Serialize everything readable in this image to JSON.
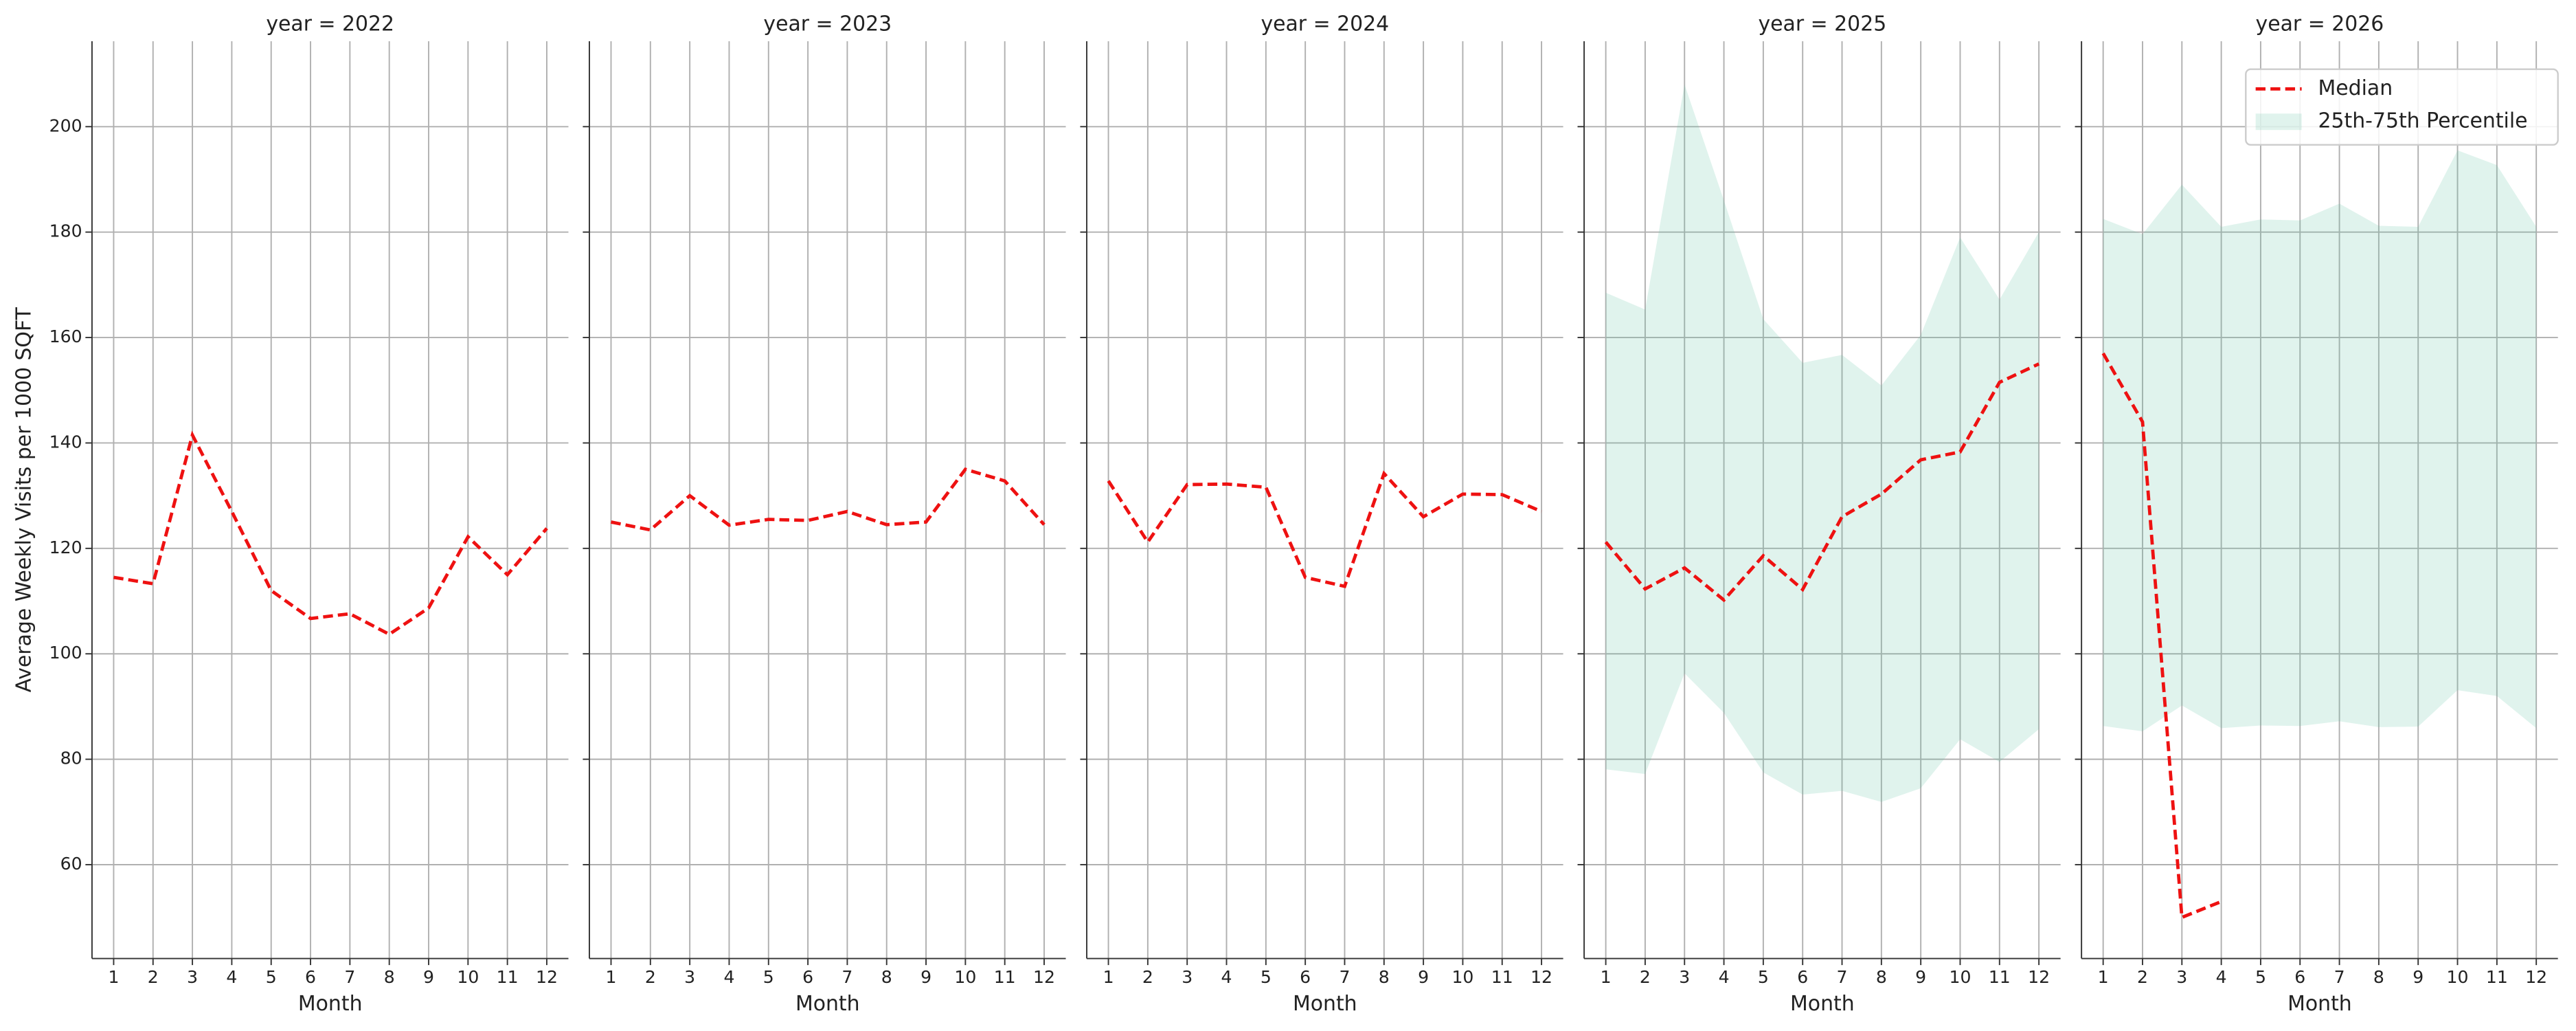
{
  "chart_data": [
    {
      "type": "line",
      "title": "year = 2022",
      "xlabel": "Month",
      "ylabel": "Average Weekly Visits per 1000 SQFT",
      "x": [
        1,
        2,
        3,
        4,
        5,
        6,
        7,
        8,
        9,
        10,
        11,
        12
      ],
      "series": [
        {
          "color": "#ee1111",
          "values": [
            114.5,
            113.3,
            141.5,
            127,
            112,
            106.7,
            107.6,
            103.7,
            108.7,
            122.2,
            115,
            123.8
          ]
        }
      ],
      "xlim": [
        0.45,
        12.55
      ],
      "xticks": [
        1,
        2,
        3,
        4,
        5,
        6,
        7,
        8,
        9,
        10,
        11,
        12
      ],
      "ylim": [
        42.2,
        216.2
      ],
      "yticks": [
        60,
        80,
        100,
        120,
        140,
        160,
        180,
        200
      ],
      "grid": true
    },
    {
      "type": "line",
      "title": "year = 2023",
      "xlabel": "Month",
      "x": [
        1,
        2,
        3,
        4,
        5,
        6,
        7,
        8,
        9,
        10,
        11,
        12
      ],
      "series": [
        {
          "color": "#ee1111",
          "values": [
            125,
            123.5,
            130,
            124.4,
            125.5,
            125.3,
            127,
            124.5,
            125,
            135,
            132.8,
            124.5
          ]
        }
      ],
      "xlim": [
        0.45,
        12.55
      ],
      "xticks": [
        1,
        2,
        3,
        4,
        5,
        6,
        7,
        8,
        9,
        10,
        11,
        12
      ],
      "ylim": [
        42.2,
        216.2
      ],
      "yticks": [
        60,
        80,
        100,
        120,
        140,
        160,
        180,
        200
      ],
      "grid": true
    },
    {
      "type": "line",
      "title": "year = 2024",
      "xlabel": "Month",
      "x": [
        1,
        2,
        3,
        4,
        5,
        6,
        7,
        8,
        9,
        10,
        11,
        12
      ],
      "series": [
        {
          "color": "#ee1111",
          "values": [
            132.8,
            121.2,
            132.1,
            132.2,
            131.6,
            114.5,
            112.8,
            134.2,
            126,
            130.3,
            130.2,
            127
          ]
        }
      ],
      "xlim": [
        0.45,
        12.55
      ],
      "xticks": [
        1,
        2,
        3,
        4,
        5,
        6,
        7,
        8,
        9,
        10,
        11,
        12
      ],
      "ylim": [
        42.2,
        216.2
      ],
      "yticks": [
        60,
        80,
        100,
        120,
        140,
        160,
        180,
        200
      ],
      "grid": true
    },
    {
      "type": "line",
      "title": "year = 2025",
      "xlabel": "Month",
      "x": [
        1,
        2,
        3,
        4,
        5,
        6,
        7,
        8,
        9,
        10,
        11,
        12
      ],
      "series": [
        {
          "color": "#ee1111",
          "values": [
            121.2,
            112.3,
            116.3,
            110.2,
            118.6,
            112.2,
            126,
            130.3,
            136.8,
            138.3,
            151.5,
            155
          ]
        },
        {
          "color": "#66c2a5",
          "low": [
            78.1,
            77.2,
            96.3,
            88.8,
            77.5,
            73.3,
            74,
            71.9,
            74.5,
            83.8,
            79.5,
            85.7
          ],
          "high": [
            168.5,
            165.3,
            208,
            186,
            163.5,
            155.2,
            156.7,
            150.9,
            160.5,
            179,
            167.2,
            180
          ]
        }
      ],
      "xlim": [
        0.45,
        12.55
      ],
      "xticks": [
        1,
        2,
        3,
        4,
        5,
        6,
        7,
        8,
        9,
        10,
        11,
        12
      ],
      "ylim": [
        42.2,
        216.2
      ],
      "yticks": [
        60,
        80,
        100,
        120,
        140,
        160,
        180,
        200
      ],
      "grid": true
    },
    {
      "type": "line",
      "title": "year = 2026",
      "xlabel": "Month",
      "x": [
        1,
        2,
        3,
        4,
        5,
        6,
        7,
        8,
        9,
        10,
        11,
        12
      ],
      "series": [
        {
          "name": "Median",
          "color": "#ee1111",
          "values": [
            157,
            144,
            50,
            53,
            null,
            null,
            null,
            null,
            null,
            null,
            null,
            null
          ]
        },
        {
          "name": "25th-75th Percentile",
          "color": "#66c2a5",
          "low": [
            86.3,
            85.3,
            90.2,
            85.9,
            86.4,
            86.3,
            87.2,
            86.1,
            86.2,
            93.1,
            92,
            85.9
          ],
          "high": [
            182.5,
            179.6,
            189,
            181,
            182.4,
            182.2,
            185.4,
            181.2,
            181,
            195.5,
            192.7,
            181
          ]
        }
      ],
      "xlim": [
        0.45,
        12.55
      ],
      "xticks": [
        1,
        2,
        3,
        4,
        5,
        6,
        7,
        8,
        9,
        10,
        11,
        12
      ],
      "ylim": [
        42.2,
        216.2
      ],
      "yticks": [
        60,
        80,
        100,
        120,
        140,
        160,
        180,
        200
      ],
      "grid": true,
      "legend": "upper right"
    }
  ]
}
